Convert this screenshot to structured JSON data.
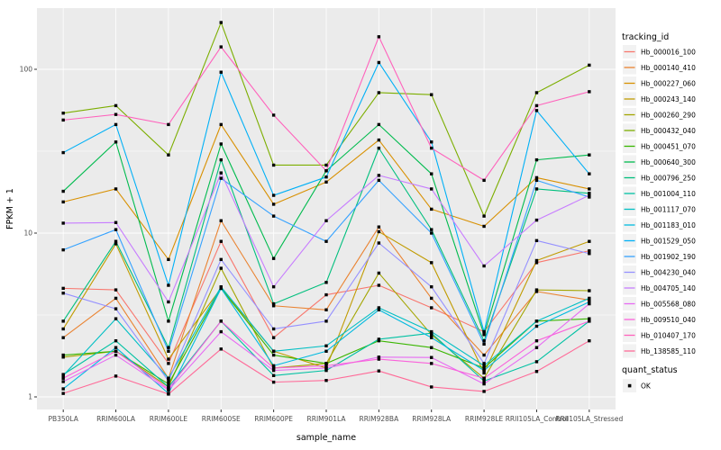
{
  "chart_data": {
    "type": "line",
    "title": "",
    "xlabel": "sample_name",
    "ylabel": "FPKM + 1",
    "y_scale": "log10",
    "ylim": [
      1,
      200
    ],
    "y_ticks": [
      1,
      10,
      100
    ],
    "y_minor": [
      3.1623,
      31.623
    ],
    "legend_title": "tracking_id",
    "legend_position": "right",
    "grid": "on",
    "point_marker": "filled-square",
    "categories": [
      "PB350LA",
      "RRIM600LA",
      "RRIM600LE",
      "RRIM600SE",
      "RRIM600PE",
      "RRIM901LA",
      "RRIM928BA",
      "RRIM928LA",
      "RRIM928LE",
      "RRII105LA_Control",
      "RRII105LA_Stressed"
    ],
    "series": [
      {
        "name": "Hb_000016_100",
        "color": "#F8766D",
        "values": [
          4.6,
          4.5,
          1.6,
          8.9,
          2.3,
          4.2,
          4.8,
          3.5,
          2.5,
          6.6,
          7.8
        ]
      },
      {
        "name": "Hb_000140_410",
        "color": "#EA8331",
        "values": [
          2.3,
          4.0,
          1.3,
          11.9,
          3.6,
          3.4,
          10.9,
          4.0,
          1.8,
          4.4,
          3.9
        ]
      },
      {
        "name": "Hb_000227_060",
        "color": "#D89000",
        "values": [
          15.5,
          18.6,
          6.9,
          46,
          15,
          20.5,
          37,
          14,
          11,
          21.8,
          18.6
        ]
      },
      {
        "name": "Hb_000243_140",
        "color": "#C09B00",
        "values": [
          2.6,
          8.6,
          1.7,
          4.6,
          1.9,
          1.5,
          10.2,
          6.6,
          1.4,
          6.8,
          8.9
        ]
      },
      {
        "name": "Hb_000260_290",
        "color": "#A3A500",
        "values": [
          1.75,
          1.9,
          1.15,
          6.1,
          1.5,
          1.6,
          5.7,
          2.4,
          1.3,
          4.5,
          4.45
        ]
      },
      {
        "name": "Hb_000432_040",
        "color": "#7CAE00",
        "values": [
          54,
          60,
          30,
          193,
          26,
          26,
          72,
          70,
          12.7,
          72,
          106
        ]
      },
      {
        "name": "Hb_000451_070",
        "color": "#39B600",
        "values": [
          1.8,
          1.9,
          1.2,
          4.6,
          1.8,
          1.6,
          2.2,
          2.0,
          1.5,
          2.9,
          3.0
        ]
      },
      {
        "name": "Hb_000640_300",
        "color": "#00BB4E",
        "values": [
          18,
          36,
          2.9,
          35,
          7.0,
          24,
          46,
          23,
          2.4,
          28,
          30
        ]
      },
      {
        "name": "Hb_000796_250",
        "color": "#00BF7D",
        "values": [
          2.9,
          8.9,
          2.0,
          28,
          3.7,
          5.0,
          33,
          10.5,
          2.2,
          18.6,
          17.5
        ]
      },
      {
        "name": "Hb_001004_110",
        "color": "#00C1A3",
        "values": [
          1.37,
          2.2,
          1.15,
          2.9,
          1.35,
          1.45,
          2.25,
          2.45,
          1.25,
          1.64,
          2.9
        ]
      },
      {
        "name": "Hb_001117_070",
        "color": "#00BFC4",
        "values": [
          1.35,
          3.0,
          1.3,
          4.7,
          1.9,
          2.05,
          3.5,
          2.5,
          1.55,
          2.9,
          4.0
        ]
      },
      {
        "name": "Hb_001183_010",
        "color": "#00BAE0",
        "values": [
          1.12,
          2.0,
          1.05,
          4.6,
          1.55,
          1.9,
          3.4,
          2.3,
          1.45,
          2.7,
          3.8
        ]
      },
      {
        "name": "Hb_001529_050",
        "color": "#00B0F6",
        "values": [
          31,
          46,
          4.8,
          96,
          17,
          22,
          110,
          36,
          2.5,
          56,
          23
        ]
      },
      {
        "name": "Hb_001902_190",
        "color": "#35A2FF",
        "values": [
          7.9,
          10.5,
          1.9,
          21.6,
          12.7,
          8.9,
          21,
          10,
          2.1,
          21,
          16.6
        ]
      },
      {
        "name": "Hb_004230_040",
        "color": "#9590FF",
        "values": [
          4.3,
          3.45,
          1.25,
          6.9,
          2.6,
          2.9,
          8.7,
          4.7,
          1.6,
          9.0,
          7.5
        ]
      },
      {
        "name": "Hb_004705_140",
        "color": "#C77CFF",
        "values": [
          11.5,
          11.6,
          3.8,
          23.3,
          4.7,
          11.9,
          22.5,
          18.6,
          6.3,
          12,
          17
        ]
      },
      {
        "name": "Hb_005568_080",
        "color": "#E76BF3",
        "values": [
          1.24,
          1.8,
          1.1,
          2.5,
          1.45,
          1.5,
          1.75,
          1.74,
          1.2,
          2.0,
          3.7
        ]
      },
      {
        "name": "Hb_009510_040",
        "color": "#FA62DB",
        "values": [
          1.3,
          1.9,
          1.12,
          2.9,
          1.5,
          1.55,
          1.7,
          1.6,
          1.3,
          2.2,
          2.9
        ]
      },
      {
        "name": "Hb_010407_170",
        "color": "#FF62BC",
        "values": [
          49,
          53,
          46,
          137,
          52.5,
          24,
          158,
          33,
          21,
          60,
          73
        ]
      },
      {
        "name": "Hb_138585_110",
        "color": "#FF6A98",
        "values": [
          1.05,
          1.34,
          1.04,
          1.96,
          1.23,
          1.26,
          1.44,
          1.15,
          1.08,
          1.43,
          2.2
        ]
      }
    ],
    "quant_status": {
      "title": "quant_status",
      "label": "OK",
      "marker": "filled-square",
      "color": "#000000"
    },
    "colors": {
      "panel_bg": "#EBEBEB",
      "grid_major": "#FFFFFF",
      "grid_minor": "#FFFFFF",
      "legend_key_bg": "#F2F2F2",
      "axis_text": "#4D4D4D",
      "tick_mark": "#333333",
      "point": "#000000"
    }
  }
}
